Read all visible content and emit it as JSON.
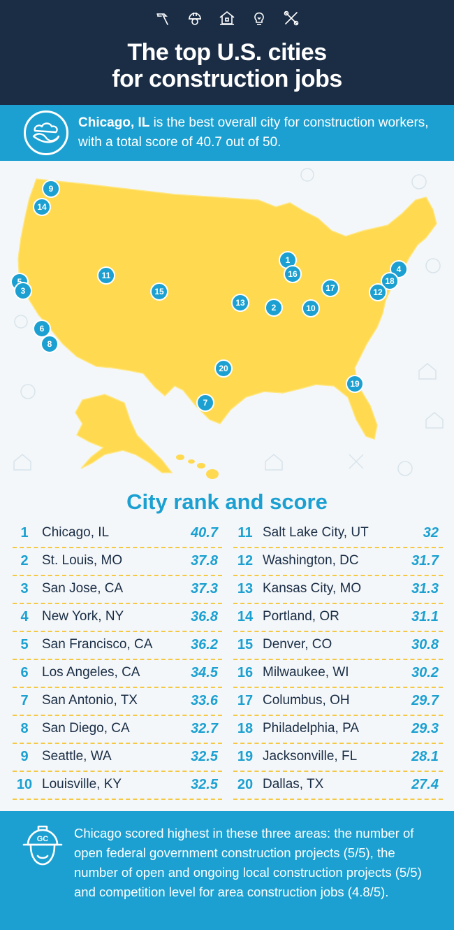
{
  "header": {
    "icons": [
      "hammer-icon",
      "hardhat-icon",
      "house-icon",
      "lightbulb-icon",
      "tools-icon"
    ],
    "title_line1": "The top U.S. cities",
    "title_line2": "for construction jobs"
  },
  "intro": {
    "city": "Chicago, IL",
    "text": " is the best overall city for construction workers, with a total score of 40.7 out of 50."
  },
  "map": {
    "pins": [
      "9",
      "14",
      "5",
      "3",
      "6",
      "8",
      "11",
      "15",
      "1",
      "16",
      "13",
      "2",
      "10",
      "17",
      "4",
      "18",
      "12",
      "20",
      "7",
      "19"
    ]
  },
  "rank": {
    "title": "City rank and score",
    "left": [
      {
        "rank": "1",
        "city": "Chicago, IL",
        "score": "40.7"
      },
      {
        "rank": "2",
        "city": "St. Louis, MO",
        "score": "37.8"
      },
      {
        "rank": "3",
        "city": "San Jose, CA",
        "score": "37.3"
      },
      {
        "rank": "4",
        "city": "New York, NY",
        "score": "36.8"
      },
      {
        "rank": "5",
        "city": "San Francisco, CA",
        "score": "36.2"
      },
      {
        "rank": "6",
        "city": "Los Angeles, CA",
        "score": "34.5"
      },
      {
        "rank": "7",
        "city": "San Antonio, TX",
        "score": "33.6"
      },
      {
        "rank": "8",
        "city": "San Diego, CA",
        "score": "32.7"
      },
      {
        "rank": "9",
        "city": "Seattle, WA",
        "score": "32.5"
      },
      {
        "rank": "10",
        "city": "Louisville, KY",
        "score": "32.5"
      }
    ],
    "right": [
      {
        "rank": "11",
        "city": "Salt Lake City, UT",
        "score": "32"
      },
      {
        "rank": "12",
        "city": "Washington, DC",
        "score": "31.7"
      },
      {
        "rank": "13",
        "city": "Kansas City, MO",
        "score": "31.3"
      },
      {
        "rank": "14",
        "city": "Portland, OR",
        "score": "31.1"
      },
      {
        "rank": "15",
        "city": "Denver, CO",
        "score": "30.8"
      },
      {
        "rank": "16",
        "city": "Milwaukee, WI",
        "score": "30.2"
      },
      {
        "rank": "17",
        "city": "Columbus, OH",
        "score": "29.7"
      },
      {
        "rank": "18",
        "city": "Philadelphia, PA",
        "score": "29.3"
      },
      {
        "rank": "19",
        "city": "Jacksonville, FL",
        "score": "28.1"
      },
      {
        "rank": "20",
        "city": "Dallas, TX",
        "score": "27.4"
      }
    ]
  },
  "footer": {
    "badge": "GC",
    "text": "Chicago scored highest in these three areas: the number of open federal government construction projects (5/5), the number of open and ongoing local construction projects (5/5) and competition level for area construction jobs (4.8/5)."
  },
  "colors": {
    "navy": "#1a2d45",
    "blue": "#1ba0d1",
    "yellow": "#ffd94f",
    "dash": "#f5c842"
  }
}
